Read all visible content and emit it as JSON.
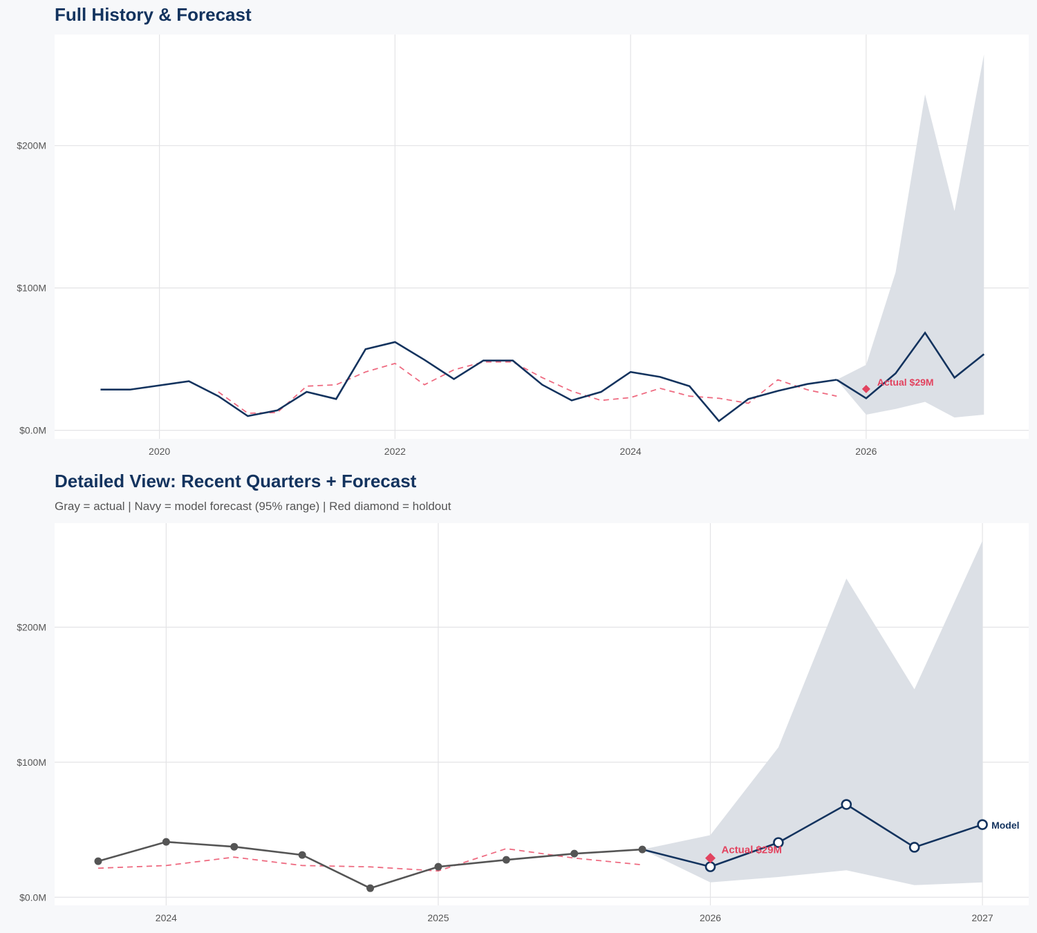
{
  "colors": {
    "history": "#13335e",
    "actual": "#555555",
    "forecast": "#13335e",
    "fitted": "#ee6a80",
    "band": "#dce0e6",
    "holdout": "#e2435f",
    "grid": "#e3e3e6"
  },
  "chart_data": [
    {
      "type": "line",
      "title": "Full History & Forecast",
      "xlim": [
        2019.11,
        2027.38
      ],
      "ylim": [
        -6,
        278
      ],
      "x_ticks": [
        {
          "v": 2020,
          "label": "2020"
        },
        {
          "v": 2022,
          "label": "2022"
        },
        {
          "v": 2024,
          "label": "2024"
        },
        {
          "v": 2026,
          "label": "2026"
        }
      ],
      "y_ticks": [
        {
          "v": 0,
          "label": "$0.0M"
        },
        {
          "v": 100,
          "label": "$100M"
        },
        {
          "v": 200,
          "label": "$200M"
        }
      ],
      "grid": true,
      "actual": {
        "x": [
          2019.5,
          2019.75,
          2020.25,
          2020.5,
          2020.75,
          2021,
          2021.25,
          2021.5,
          2021.75,
          2022,
          2022.25,
          2022.5,
          2022.75,
          2023,
          2023.25,
          2023.5,
          2023.75,
          2024,
          2024.25,
          2024.5,
          2024.75,
          2025,
          2025.25,
          2025.5,
          2025.75
        ],
        "y": [
          28.6,
          28.6,
          34.5,
          24,
          10,
          14,
          27,
          22,
          57,
          62,
          49.5,
          36,
          49,
          49,
          32,
          21,
          27,
          41,
          37.5,
          31,
          6.5,
          22,
          27.7,
          32.5,
          35.5
        ]
      },
      "fitted": {
        "x": [
          2020.5,
          2020.75,
          2021,
          2021.25,
          2021.5,
          2021.75,
          2022,
          2022.25,
          2022.5,
          2022.75,
          2023,
          2023.25,
          2023.5,
          2023.75,
          2024,
          2024.25,
          2024.5,
          2024.75,
          2025,
          2025.25,
          2025.5,
          2025.75
        ],
        "y": [
          27,
          12,
          12.5,
          31,
          32,
          41,
          47,
          32,
          42.5,
          48,
          48,
          37,
          27.5,
          21,
          23,
          29.5,
          24,
          22.5,
          19,
          35.5,
          28.5,
          24
        ]
      },
      "forecast": {
        "x": [
          2025.75,
          2026,
          2026.25,
          2026.5,
          2026.75,
          2027
        ],
        "y": [
          35.5,
          22.5,
          40,
          68.5,
          37,
          53.5
        ],
        "upper": [
          35.5,
          46,
          111,
          236,
          154,
          264
        ],
        "lower": [
          35.5,
          11,
          15,
          20,
          9,
          11
        ]
      },
      "holdout": {
        "x": 2026,
        "y": 29,
        "label": "Actual $29M"
      }
    },
    {
      "type": "line",
      "title": "Detailed View: Recent Quarters + Forecast",
      "subtitle": "Gray = actual  |  Navy = model forecast (95% range)  |  Red diamond = holdout",
      "xlim": [
        2023.59,
        2027.17
      ],
      "ylim": [
        -6,
        277
      ],
      "x_ticks": [
        {
          "v": 2024,
          "label": "2024"
        },
        {
          "v": 2025,
          "label": "2025"
        },
        {
          "v": 2026,
          "label": "2026"
        },
        {
          "v": 2027,
          "label": "2027"
        }
      ],
      "y_ticks": [
        {
          "v": 0,
          "label": "$0.0M"
        },
        {
          "v": 100,
          "label": "$100M"
        },
        {
          "v": 200,
          "label": "$200M"
        }
      ],
      "grid": true,
      "actual": {
        "x": [
          2023.75,
          2024,
          2024.25,
          2024.5,
          2024.75,
          2025,
          2025.25,
          2025.5,
          2025.75
        ],
        "y": [
          26.7,
          41,
          37.4,
          31.3,
          6.7,
          22.6,
          27.7,
          32.3,
          35.4
        ]
      },
      "fitted": {
        "x": [
          2023.75,
          2024,
          2024.25,
          2024.5,
          2024.75,
          2025,
          2025.25,
          2025.5,
          2025.75
        ],
        "y": [
          21.5,
          23.5,
          29.7,
          23.5,
          22.5,
          19.5,
          36,
          29,
          24
        ]
      },
      "forecast": {
        "x": [
          2025.75,
          2026,
          2026.25,
          2026.5,
          2026.75,
          2027
        ],
        "y": [
          35.4,
          22.6,
          40.5,
          68.7,
          37,
          53.8
        ],
        "upper": [
          35.4,
          46,
          111,
          236,
          154,
          264
        ],
        "lower": [
          35.4,
          11,
          15,
          20,
          9,
          11
        ],
        "end_label": "Model"
      },
      "holdout": {
        "x": 2026,
        "y": 29,
        "label": "Actual $29M"
      }
    }
  ]
}
